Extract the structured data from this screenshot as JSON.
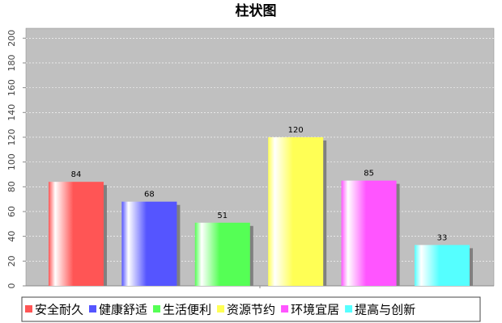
{
  "chart_data": {
    "type": "bar",
    "title": "柱状图",
    "categories": [
      "安全耐久",
      "健康舒适",
      "生活便利",
      "资源节约",
      "环境宜居",
      "提高与创新"
    ],
    "values": [
      84,
      68,
      51,
      120,
      85,
      33
    ],
    "colors": [
      "#ff5555",
      "#5555ff",
      "#55ff55",
      "#ffff55",
      "#ff55ff",
      "#55ffff"
    ],
    "ylim": [
      0,
      208
    ],
    "yticks": [
      0,
      20,
      40,
      60,
      80,
      100,
      120,
      140,
      160,
      180,
      200
    ],
    "grid": true,
    "legend": "bottom"
  }
}
